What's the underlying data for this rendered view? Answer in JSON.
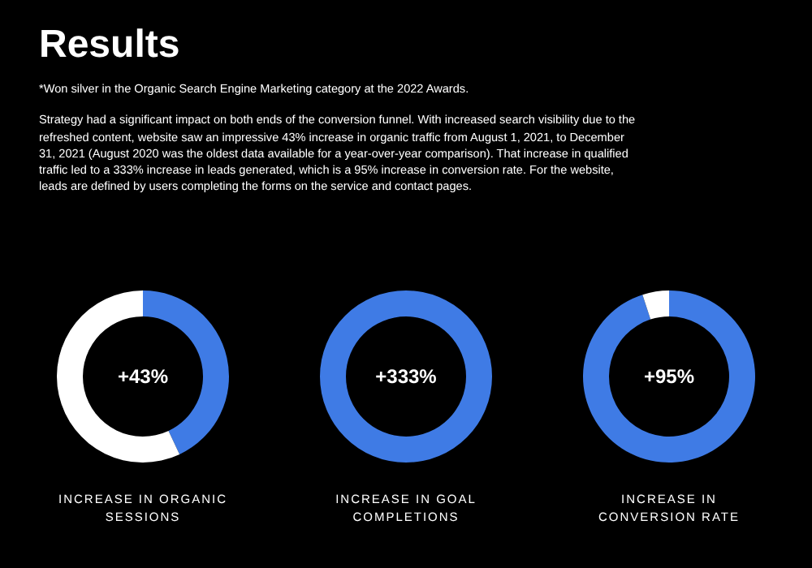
{
  "chart_data": [
    {
      "type": "other",
      "title": "Results",
      "annotations": [
        "*Won silver in the Organic Search Engine Marketing category at the 2022 Awards.",
        "Strategy had a significant impact on both ends of the conversion funnel. With increased search visibility due to the refreshed content, website saw an impressive 43% increase in organic traffic from August 1, 2021, to December 31, 2021 (August 2020 was the oldest data available for a year-over-year comparison). That increase in qualified traffic led to a 333% increase in leads generated, which is a 95% increase in conversion rate. For the website, leads are defined by users completing the forms on the service and contact pages."
      ]
    },
    {
      "type": "donut",
      "title": "INCREASE IN ORGANIC SESSIONS",
      "categories": [
        null,
        null
      ],
      "values": [
        43,
        57
      ],
      "colors": [
        "#3f7be5",
        "#ffffff"
      ],
      "annotations": [
        "+43%"
      ]
    },
    {
      "type": "donut",
      "title": "INCREASE IN GOAL COMPLETIONS",
      "categories": [
        null
      ],
      "values": [
        100
      ],
      "colors": [
        "#3f7be5"
      ],
      "annotations": [
        "+333%"
      ]
    },
    {
      "type": "donut",
      "title": "INCREASE IN CONVERSION RATE",
      "categories": [
        null,
        null
      ],
      "values": [
        95,
        5
      ],
      "colors": [
        "#3f7be5",
        "#ffffff"
      ],
      "annotations": [
        "+95%"
      ]
    }
  ]
}
